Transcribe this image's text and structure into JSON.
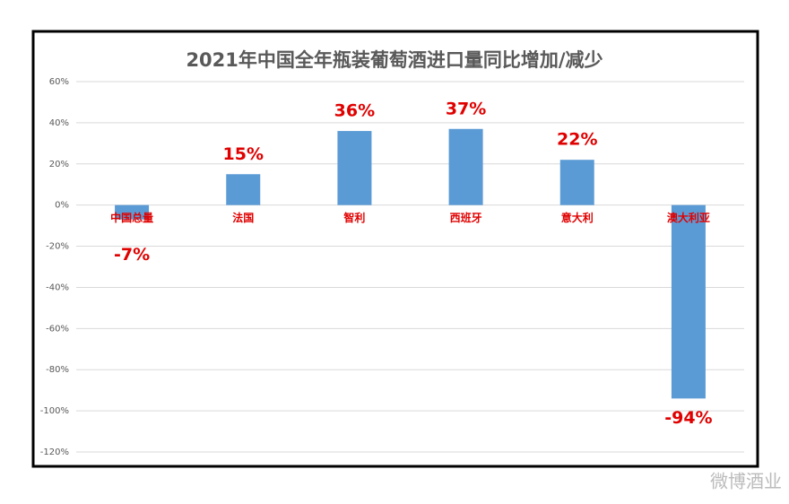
{
  "chart_data": {
    "type": "bar",
    "title": "2021年中国全年瓶装葡萄酒进口量同比增加/减少",
    "categories": [
      "中国总量",
      "法国",
      "智利",
      "西班牙",
      "意大利",
      "澳大利亚"
    ],
    "values": [
      -7,
      15,
      36,
      37,
      22,
      -94
    ],
    "value_labels": [
      "-7%",
      "15%",
      "36%",
      "37%",
      "22%",
      "-94%"
    ],
    "color": "#5b9bd5",
    "label_color": "#e00000",
    "ylim": [
      -120,
      60
    ],
    "yticks": [
      {
        "value": -120,
        "label": "-120%"
      },
      {
        "value": -100,
        "label": "-100%"
      },
      {
        "value": -80,
        "label": "-80%"
      },
      {
        "value": -60,
        "label": "-60%"
      },
      {
        "value": -40,
        "label": "-40%"
      },
      {
        "value": -20,
        "label": "-20%"
      },
      {
        "value": 0,
        "label": "0%"
      },
      {
        "value": 20,
        "label": "20%"
      },
      {
        "value": 40,
        "label": "40%"
      },
      {
        "value": 60,
        "label": "60%"
      }
    ],
    "grid": true
  },
  "watermark": "微博酒业"
}
